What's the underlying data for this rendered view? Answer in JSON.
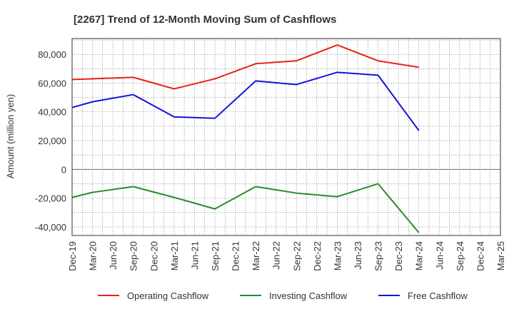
{
  "chart_data": {
    "type": "line",
    "title": "[2267]  Trend of 12-Month Moving Sum of Cashflows",
    "ylabel": "Amount (million yen)",
    "xlabel": "",
    "categories": [
      "Dec-19",
      "Mar-20",
      "Jun-20",
      "Sep-20",
      "Dec-20",
      "Mar-21",
      "Jun-21",
      "Sep-21",
      "Dec-21",
      "Mar-22",
      "Jun-22",
      "Sep-22",
      "Dec-22",
      "Mar-23",
      "Jun-23",
      "Sep-23",
      "Dec-23",
      "Mar-24",
      "Jun-24",
      "Sep-24",
      "Dec-24",
      "Mar-25"
    ],
    "yticks": [
      -40000,
      -20000,
      0,
      20000,
      40000,
      60000,
      80000
    ],
    "ylim": [
      -46000,
      91000
    ],
    "grid": true,
    "legend_position": "bottom",
    "series": [
      {
        "name": "Operating Cashflow",
        "color": "#e8211a",
        "points": [
          [
            "Dec-19",
            62500
          ],
          [
            "Mar-20",
            63000
          ],
          [
            "Sep-20",
            64000
          ],
          [
            "Mar-21",
            56000
          ],
          [
            "Sep-21",
            63000
          ],
          [
            "Mar-22",
            73500
          ],
          [
            "Sep-22",
            75500
          ],
          [
            "Mar-23",
            86500
          ],
          [
            "Sep-23",
            75500
          ],
          [
            "Mar-24",
            71000
          ]
        ]
      },
      {
        "name": "Investing Cashflow",
        "color": "#2a8a2a",
        "points": [
          [
            "Dec-19",
            -19500
          ],
          [
            "Mar-20",
            -16000
          ],
          [
            "Sep-20",
            -12000
          ],
          [
            "Mar-21",
            -19500
          ],
          [
            "Sep-21",
            -27500
          ],
          [
            "Mar-22",
            -12000
          ],
          [
            "Sep-22",
            -16500
          ],
          [
            "Mar-23",
            -19000
          ],
          [
            "Sep-23",
            -10000
          ],
          [
            "Mar-24",
            -44000
          ]
        ]
      },
      {
        "name": "Free Cashflow",
        "color": "#1414d8",
        "points": [
          [
            "Dec-19",
            43000
          ],
          [
            "Mar-20",
            47000
          ],
          [
            "Sep-20",
            52000
          ],
          [
            "Mar-21",
            36500
          ],
          [
            "Sep-21",
            35500
          ],
          [
            "Mar-22",
            61500
          ],
          [
            "Sep-22",
            59000
          ],
          [
            "Mar-23",
            67500
          ],
          [
            "Sep-23",
            65500
          ],
          [
            "Mar-24",
            27000
          ]
        ]
      }
    ]
  }
}
